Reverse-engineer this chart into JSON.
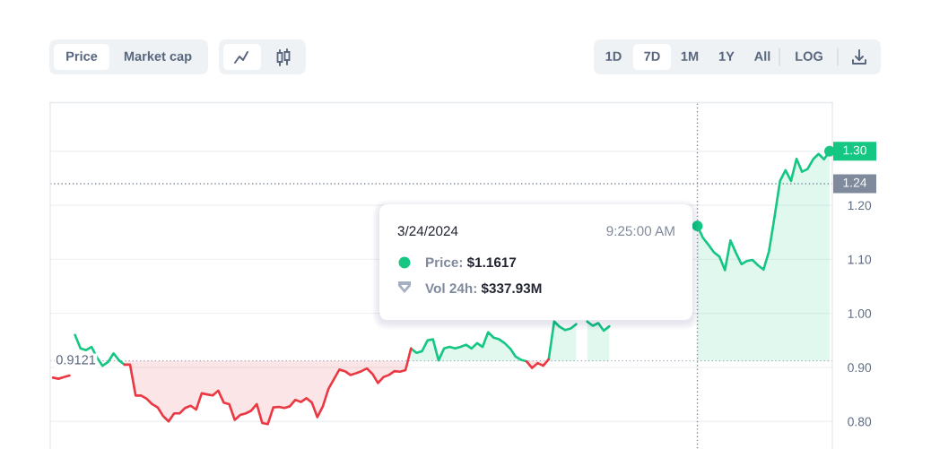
{
  "chart_data": {
    "type": "line",
    "categories": [
      null,
      null,
      null,
      null,
      null,
      null,
      null,
      null,
      null,
      null,
      null,
      null,
      null,
      null,
      null,
      null,
      null,
      null,
      null,
      null,
      null,
      null,
      null,
      null,
      null,
      null,
      null,
      null,
      null,
      null,
      null,
      null,
      null,
      null,
      null,
      null,
      null,
      null,
      null,
      null,
      null,
      null,
      null,
      null,
      null,
      null,
      null,
      null,
      null,
      null,
      null,
      null,
      null,
      null,
      null,
      null,
      null,
      null,
      null,
      null,
      null,
      null,
      null,
      null,
      null,
      null,
      null,
      null,
      null,
      null,
      null,
      null,
      null,
      null,
      null,
      null,
      null,
      null,
      null,
      null,
      null,
      null,
      null,
      null,
      null,
      null,
      null,
      null,
      null,
      null,
      null,
      null,
      null,
      null,
      null,
      null,
      null,
      null,
      null,
      null,
      null,
      null,
      null,
      null,
      null,
      null,
      null,
      null,
      null,
      null,
      null,
      null,
      null,
      null,
      null,
      null,
      null,
      null,
      null,
      null,
      null,
      null,
      null,
      null,
      null,
      null,
      null,
      null,
      null,
      null,
      null,
      null,
      null,
      null,
      null,
      null,
      null,
      null,
      null,
      null,
      null,
      null
    ],
    "series": [
      {
        "color": "#16c784",
        "values": [
          null,
          null,
          null,
          null,
          0.96,
          0.935,
          0.932,
          0.938,
          0.918,
          0.903,
          0.91,
          0.926,
          0.913,
          0.905,
          null,
          null,
          null,
          null,
          null,
          null,
          null,
          null,
          null,
          null,
          null,
          null,
          null,
          null,
          null,
          null,
          null,
          null,
          null,
          null,
          null,
          null,
          null,
          null,
          null,
          null,
          null,
          null,
          null,
          null,
          null,
          null,
          null,
          null,
          null,
          null,
          null,
          null,
          null,
          null,
          null,
          null,
          null,
          null,
          null,
          null,
          null,
          null,
          null,
          null,
          null,
          0.935,
          0.927,
          0.93,
          0.95,
          0.952,
          0.913,
          0.935,
          0.938,
          0.935,
          0.938,
          0.942,
          0.935,
          0.945,
          0.938,
          0.965,
          0.955,
          0.952,
          0.945,
          0.935,
          0.92,
          0.914,
          0.911,
          null,
          null,
          null,
          0.915,
          0.985,
          0.975,
          0.969,
          0.972,
          0.98,
          null,
          0.985,
          0.977,
          0.982,
          0.968,
          0.976,
          null,
          null,
          null,
          null,
          null,
          null,
          null,
          null,
          null,
          null,
          null,
          null,
          null,
          null,
          null,
          1.1617,
          1.14,
          1.127,
          1.113,
          1.105,
          1.08,
          1.135,
          1.112,
          1.091,
          1.097,
          1.099,
          1.089,
          1.081,
          1.115,
          1.178,
          1.245,
          1.265,
          1.245,
          1.286,
          1.262,
          1.267,
          1.285,
          1.295,
          1.285,
          1.3
        ],
        "lower": [
          null,
          null,
          null,
          null,
          null,
          null,
          null,
          null,
          null,
          null,
          null,
          null,
          null,
          null,
          null,
          null,
          null,
          null,
          null,
          null,
          null,
          null,
          null,
          null,
          null,
          null,
          null,
          null,
          null,
          null,
          null,
          null,
          null,
          null,
          null,
          null,
          null,
          null,
          null,
          null,
          null,
          null,
          null,
          null,
          null,
          null,
          null,
          null,
          null,
          null,
          null,
          null,
          null,
          null,
          null,
          null,
          null,
          null,
          null,
          null,
          null,
          null,
          null,
          null,
          null,
          0.9121,
          0.9121,
          0.9121,
          0.9121,
          0.9121,
          0.9121,
          0.9121,
          0.9121,
          0.9121,
          0.9121,
          0.9121,
          0.9121,
          0.9121,
          0.9121,
          0.9121,
          0.9121,
          0.9121,
          0.9121,
          0.9121,
          0.9121,
          0.9121,
          null,
          null,
          null,
          null,
          0.9121,
          0.9121,
          0.9121,
          0.9121,
          0.9121,
          0.9121,
          null,
          0.9121,
          0.9121,
          0.9121,
          0.9121,
          0.9121,
          null,
          null,
          null,
          null,
          null,
          null,
          null,
          null,
          null,
          null,
          null,
          null,
          null,
          null,
          null,
          0.9121,
          0.9121,
          0.9121,
          0.9121,
          0.9121,
          0.9121,
          0.9121,
          0.9121,
          0.9121,
          0.9121,
          0.9121,
          0.9121,
          0.9121,
          0.9121,
          0.9121,
          0.9121,
          0.9121,
          0.9121,
          0.9121,
          0.9121,
          0.9121,
          0.9121,
          0.9121,
          0.9121,
          0.9121
        ],
        "upper": [
          null,
          null,
          null,
          null,
          null,
          null,
          null,
          null,
          null,
          null,
          null,
          null,
          null,
          null,
          null,
          null,
          null,
          null,
          null,
          null,
          null,
          null,
          null,
          null,
          null,
          null,
          null,
          null,
          null,
          null,
          null,
          null,
          null,
          null,
          null,
          null,
          null,
          null,
          null,
          null,
          null,
          null,
          null,
          null,
          null,
          null,
          null,
          null,
          null,
          null,
          null,
          null,
          null,
          null,
          null,
          null,
          null,
          null,
          null,
          null,
          null,
          null,
          null,
          null,
          null,
          0.935,
          0.927,
          0.93,
          0.95,
          0.952,
          0.913,
          0.935,
          0.938,
          0.935,
          0.938,
          0.942,
          0.935,
          0.945,
          0.938,
          0.965,
          0.955,
          0.952,
          0.945,
          0.935,
          0.92,
          0.914,
          null,
          null,
          null,
          null,
          0.915,
          0.985,
          0.975,
          0.969,
          0.972,
          0.98,
          null,
          0.985,
          0.977,
          0.982,
          0.968,
          0.976,
          null,
          null,
          null,
          null,
          null,
          null,
          null,
          null,
          null,
          null,
          null,
          null,
          null,
          null,
          null,
          1.1617,
          1.14,
          1.127,
          1.113,
          1.105,
          1.08,
          1.135,
          1.112,
          1.091,
          1.097,
          1.099,
          1.089,
          1.081,
          1.115,
          1.178,
          1.245,
          1.265,
          1.245,
          1.286,
          1.262,
          1.267,
          1.285,
          1.295,
          1.285,
          1.3
        ],
        "value_labels": [
          null,
          null,
          null,
          null,
          null,
          null,
          null,
          null,
          null,
          null,
          null,
          null,
          null,
          null,
          null,
          null,
          null,
          null,
          null,
          null,
          null,
          null,
          null,
          null,
          null,
          null,
          null,
          null,
          null,
          null,
          null,
          null,
          null,
          null,
          null,
          null,
          null,
          null,
          null,
          null,
          null,
          null,
          null,
          null,
          null,
          null,
          null,
          null,
          null,
          null,
          null,
          null,
          null,
          null,
          null,
          null,
          null,
          null,
          null,
          null,
          null,
          null,
          null,
          null,
          null,
          null,
          null,
          null,
          null,
          null,
          null,
          null,
          null,
          null,
          null,
          null,
          null,
          null,
          null,
          null,
          null,
          null,
          null,
          null,
          null,
          null,
          null,
          null,
          null,
          null,
          null,
          null,
          null,
          null,
          null,
          null,
          null,
          null,
          null,
          null,
          null,
          null,
          null,
          null,
          null,
          null,
          null,
          null,
          null,
          null,
          null,
          null,
          null,
          null,
          null,
          null,
          null,
          null,
          null,
          null,
          null,
          null,
          null,
          null,
          null,
          null,
          null,
          null,
          null,
          null,
          null,
          null,
          null,
          null,
          null,
          null,
          null,
          null,
          null,
          null,
          null,
          "1.30"
        ]
      },
      {
        "color": "#ea3943",
        "values": [
          0.881,
          0.879,
          0.882,
          0.885,
          null,
          null,
          null,
          null,
          null,
          null,
          null,
          null,
          null,
          0.905,
          0.905,
          0.848,
          0.848,
          0.842,
          0.832,
          0.826,
          0.81,
          0.8,
          0.815,
          0.815,
          0.825,
          0.829,
          0.822,
          0.852,
          0.85,
          0.848,
          0.857,
          0.835,
          0.832,
          0.803,
          0.812,
          0.815,
          0.82,
          0.832,
          0.797,
          0.795,
          0.826,
          0.827,
          0.825,
          0.828,
          0.84,
          0.836,
          0.843,
          0.835,
          0.808,
          0.828,
          0.86,
          0.878,
          0.896,
          0.893,
          0.886,
          0.889,
          0.893,
          0.898,
          0.888,
          0.871,
          0.882,
          0.886,
          0.893,
          0.892,
          0.895,
          0.935,
          null,
          null,
          null,
          null,
          null,
          null,
          null,
          null,
          null,
          null,
          null,
          null,
          null,
          null,
          null,
          null,
          null,
          null,
          null,
          null,
          0.911,
          0.899,
          0.908,
          0.903,
          0.915,
          null,
          null,
          null,
          null,
          null,
          null,
          null,
          null,
          null,
          null,
          null,
          null,
          null,
          null,
          null,
          null,
          null,
          null,
          null,
          null,
          null,
          null,
          null,
          null,
          null,
          null,
          null,
          null,
          null,
          null,
          null,
          null,
          null,
          null,
          null,
          null,
          null,
          null,
          null,
          null,
          null,
          null,
          null,
          null,
          null,
          null,
          null,
          null,
          null,
          null,
          null
        ],
        "lower": [
          null,
          null,
          null,
          null,
          null,
          null,
          null,
          null,
          null,
          null,
          null,
          null,
          null,
          0.905,
          0.905,
          0.848,
          0.848,
          0.842,
          0.832,
          0.826,
          0.81,
          0.8,
          0.815,
          0.815,
          0.825,
          0.829,
          0.822,
          0.852,
          0.85,
          0.848,
          0.857,
          0.835,
          0.832,
          0.803,
          0.812,
          0.815,
          0.82,
          0.832,
          0.797,
          0.795,
          0.826,
          0.827,
          0.825,
          0.828,
          0.84,
          0.836,
          0.843,
          0.835,
          0.808,
          0.828,
          0.86,
          0.878,
          0.896,
          0.893,
          0.886,
          0.889,
          0.893,
          0.898,
          0.888,
          0.871,
          0.882,
          0.886,
          0.893,
          0.892,
          0.895,
          null,
          null,
          null,
          null,
          null,
          null,
          null,
          null,
          null,
          null,
          null,
          null,
          null,
          null,
          null,
          null,
          null,
          null,
          null,
          null,
          null,
          0.911,
          0.899,
          0.908,
          0.903,
          null,
          null,
          null,
          null,
          null,
          null,
          null,
          null,
          null,
          null,
          null,
          null,
          null,
          null,
          null,
          null,
          null,
          null,
          null,
          null,
          null,
          null,
          null,
          null,
          null,
          null,
          null,
          null,
          null,
          null,
          null,
          null,
          null,
          null,
          null,
          null,
          null,
          null,
          null,
          null,
          null,
          null,
          null,
          null,
          null,
          null,
          null,
          null,
          null,
          null,
          null,
          null
        ],
        "upper": [
          null,
          null,
          null,
          null,
          null,
          null,
          null,
          null,
          null,
          null,
          null,
          null,
          null,
          0.9121,
          0.9121,
          0.9121,
          0.9121,
          0.9121,
          0.9121,
          0.9121,
          0.9121,
          0.9121,
          0.9121,
          0.9121,
          0.9121,
          0.9121,
          0.9121,
          0.9121,
          0.9121,
          0.9121,
          0.9121,
          0.9121,
          0.9121,
          0.9121,
          0.9121,
          0.9121,
          0.9121,
          0.9121,
          0.9121,
          0.9121,
          0.9121,
          0.9121,
          0.9121,
          0.9121,
          0.9121,
          0.9121,
          0.9121,
          0.9121,
          0.9121,
          0.9121,
          0.9121,
          0.9121,
          0.9121,
          0.9121,
          0.9121,
          0.9121,
          0.9121,
          0.9121,
          0.9121,
          0.9121,
          0.9121,
          0.9121,
          0.9121,
          0.9121,
          0.9121,
          null,
          null,
          null,
          null,
          null,
          null,
          null,
          null,
          null,
          null,
          null,
          null,
          null,
          null,
          null,
          null,
          null,
          null,
          null,
          null,
          null,
          0.9121,
          0.9121,
          0.9121,
          0.9121,
          null,
          null,
          null,
          null,
          null,
          null,
          null,
          null,
          null,
          null,
          null,
          null,
          null,
          null,
          null,
          null,
          null,
          null,
          null,
          null,
          null,
          null,
          null,
          null,
          null,
          null,
          null,
          null,
          null,
          null,
          null,
          null,
          null,
          null,
          null,
          null,
          null,
          null,
          null,
          null,
          null,
          null,
          null,
          null,
          null,
          null,
          null,
          null,
          null,
          null,
          null,
          null
        ]
      }
    ],
    "ylim": [
      0.75,
      1.39
    ],
    "yticks": [
      {
        "value": 0.8,
        "label": "0.80"
      },
      {
        "value": 0.9,
        "label": "0.90"
      },
      {
        "value": 1.0,
        "label": "1.00"
      },
      {
        "value": 1.1,
        "label": "1.10"
      },
      {
        "value": 1.2,
        "label": "1.20"
      },
      {
        "value": 1.3,
        "label": null
      }
    ],
    "tick_labels": "y",
    "grid": "y",
    "ref_lines": [
      {
        "axis": "y",
        "value": 0.9121,
        "label": "0.9121",
        "line_style": "dotted",
        "color": "#a6b0c3"
      },
      {
        "axis": "y",
        "value": 1.24,
        "label": "1.24",
        "line_style": "dotted",
        "color": "#808a9d"
      }
    ],
    "annotations": [
      "Price",
      "Market cap",
      "1D",
      "7D",
      "1M",
      "1Y",
      "All",
      "LOG",
      "3/24/2024",
      "9:25:00 AM",
      "Price:",
      "$1.1617",
      "Vol 24h:",
      "$337.93M"
    ]
  }
}
